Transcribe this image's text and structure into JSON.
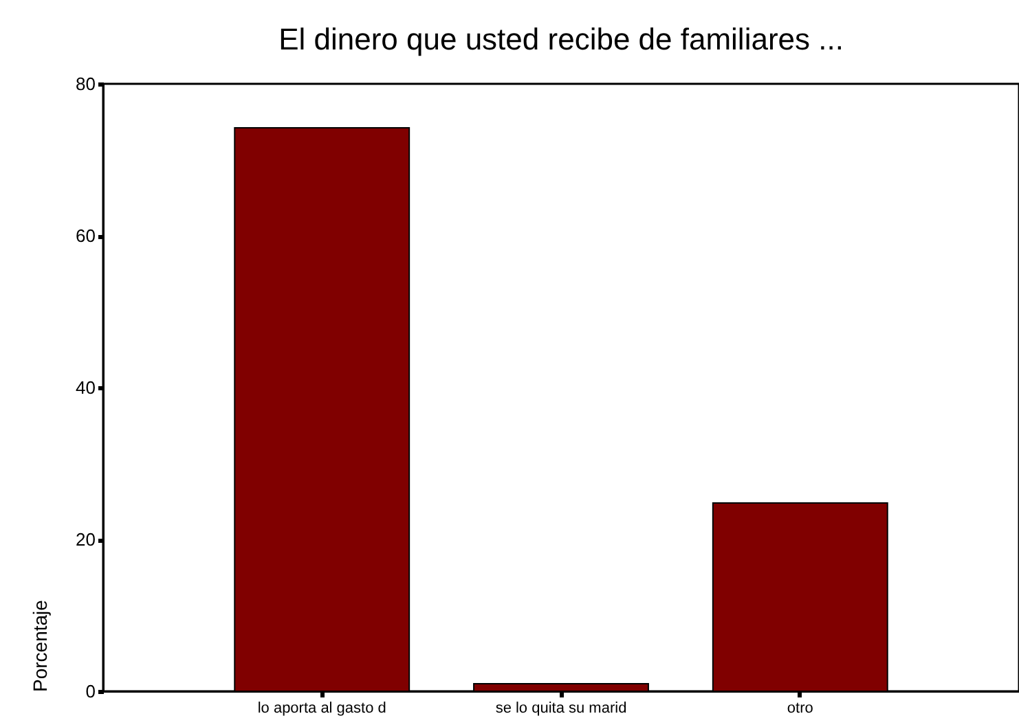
{
  "chart_data": {
    "type": "bar",
    "title": "El dinero que usted recibe de familiares ...",
    "categories": [
      "lo aporta al gasto d",
      "se lo quita su marid",
      "otro"
    ],
    "values": [
      74.2,
      1.0,
      24.8
    ],
    "color": "#800000",
    "ylabel": "Porcentaje",
    "ylim": [
      0,
      80
    ],
    "yticks": [
      0,
      20,
      40,
      60,
      80
    ],
    "grid": false,
    "legend": false
  }
}
